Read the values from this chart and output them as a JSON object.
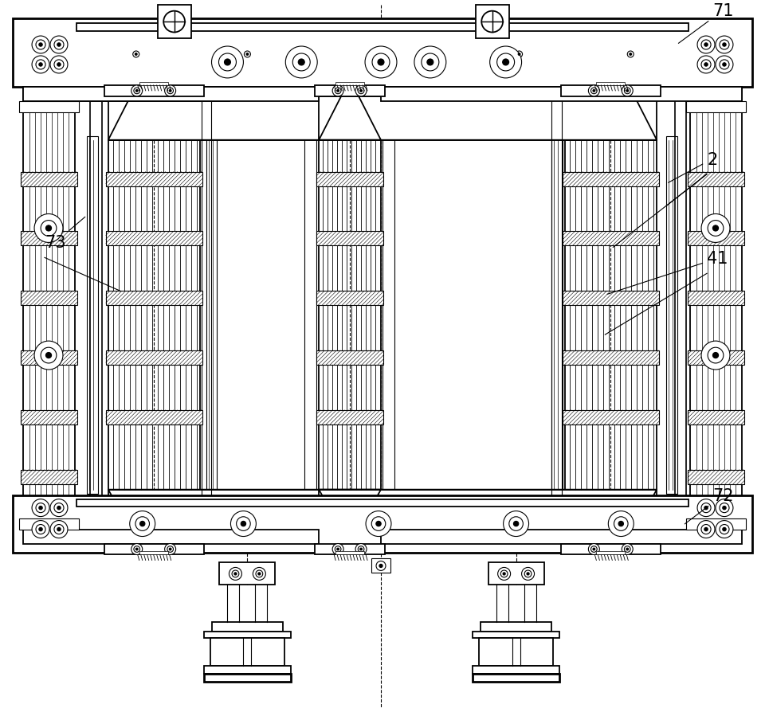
{
  "bg_color": "#ffffff",
  "line_color": "#000000",
  "fig_width": 9.6,
  "fig_height": 8.95
}
